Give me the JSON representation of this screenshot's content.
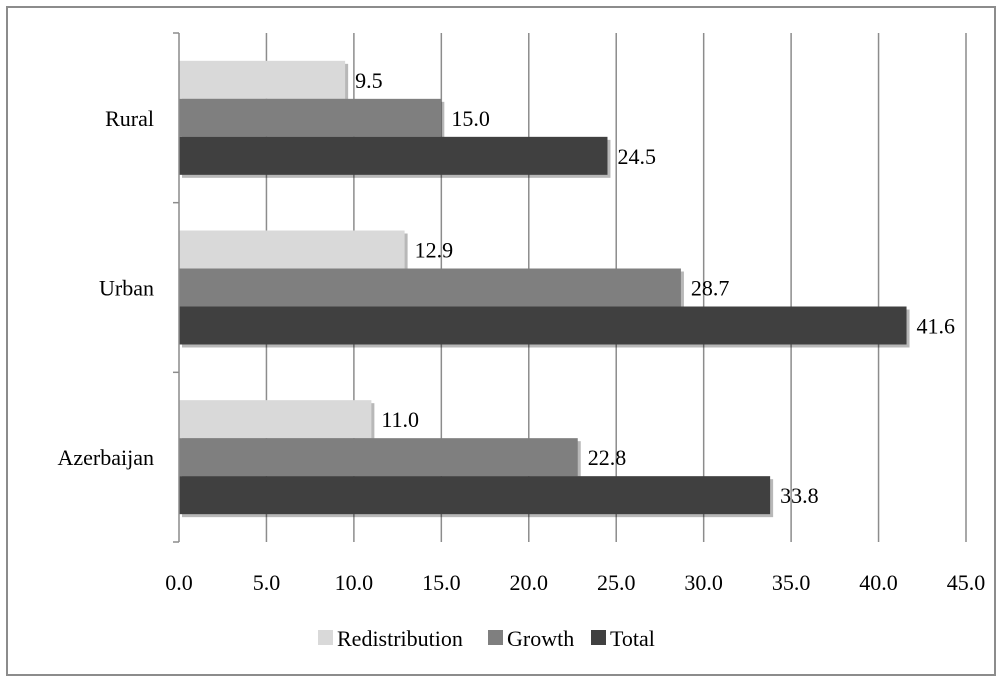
{
  "chart_data": {
    "type": "bar",
    "orientation": "horizontal",
    "categories": [
      "Rural",
      "Urban",
      "Azerbaijan"
    ],
    "series": [
      {
        "name": "Redistribution",
        "values": [
          9.5,
          12.9,
          11.0
        ],
        "labels": [
          "9.5",
          "12.9",
          "11.0"
        ],
        "color": "#d9d9d9"
      },
      {
        "name": "Growth",
        "values": [
          15.0,
          28.7,
          22.8
        ],
        "labels": [
          "15.0",
          "28.7",
          "22.8"
        ],
        "color": "#7f7f7f"
      },
      {
        "name": "Total",
        "values": [
          24.5,
          41.6,
          33.8
        ],
        "labels": [
          "24.5",
          "41.6",
          "33.8"
        ],
        "color": "#404040"
      }
    ],
    "xlim": [
      0,
      45
    ],
    "x_ticks": [
      "0.0",
      "5.0",
      "10.0",
      "15.0",
      "20.0",
      "25.0",
      "30.0",
      "35.0",
      "40.0",
      "45.0"
    ],
    "title": "",
    "xlabel": "",
    "ylabel": "",
    "grid": "vertical",
    "legend_position": "bottom-center"
  }
}
